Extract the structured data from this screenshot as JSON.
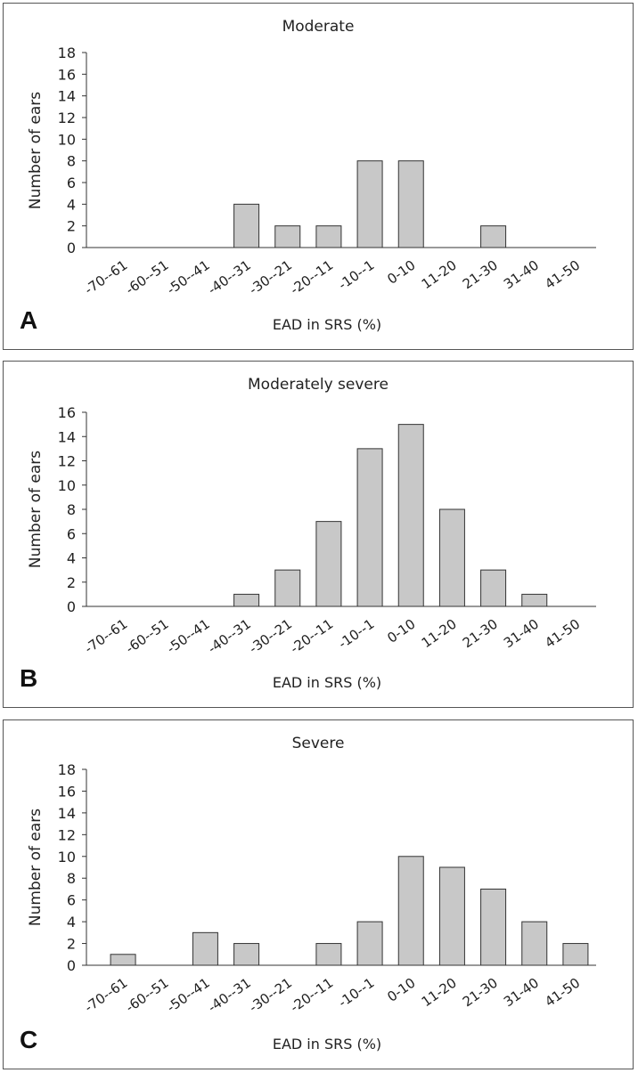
{
  "chart_data": [
    {
      "type": "bar",
      "panel_letter": "A",
      "title": "Moderate",
      "xlabel": "EAD in SRS (%)",
      "ylabel": "Number of ears",
      "ylim": [
        0,
        18
      ],
      "yticks": [
        0,
        2,
        4,
        6,
        8,
        10,
        12,
        14,
        16,
        18
      ],
      "categories": [
        "-70--61",
        "-60--51",
        "-50--41",
        "-40--31",
        "-30--21",
        "-20--11",
        "-10--1",
        "0-10",
        "11-20",
        "21-30",
        "31-40",
        "41-50"
      ],
      "values": [
        0,
        0,
        0,
        4,
        2,
        2,
        8,
        8,
        0,
        2,
        0,
        0
      ],
      "bar_color": "#c8c8c8"
    },
    {
      "type": "bar",
      "panel_letter": "B",
      "title": "Moderately severe",
      "xlabel": "EAD in SRS (%)",
      "ylabel": "Number of ears",
      "ylim": [
        0,
        16
      ],
      "yticks": [
        0,
        2,
        4,
        6,
        8,
        10,
        12,
        14,
        16
      ],
      "categories": [
        "-70--61",
        "-60--51",
        "-50--41",
        "-40--31",
        "-30--21",
        "-20--11",
        "-10--1",
        "0-10",
        "11-20",
        "21-30",
        "31-40",
        "41-50"
      ],
      "values": [
        0,
        0,
        0,
        1,
        3,
        7,
        13,
        15,
        8,
        3,
        1,
        0
      ],
      "bar_color": "#c8c8c8"
    },
    {
      "type": "bar",
      "panel_letter": "C",
      "title": "Severe",
      "xlabel": "EAD in SRS (%)",
      "ylabel": "Number of ears",
      "ylim": [
        0,
        18
      ],
      "yticks": [
        0,
        2,
        4,
        6,
        8,
        10,
        12,
        14,
        16,
        18
      ],
      "categories": [
        "-70--61",
        "-60--51",
        "-50--41",
        "-40--31",
        "-30--21",
        "-20--11",
        "-10--1",
        "0-10",
        "11-20",
        "21-30",
        "31-40",
        "41-50"
      ],
      "values": [
        1,
        0,
        3,
        2,
        0,
        2,
        4,
        10,
        9,
        7,
        4,
        2
      ],
      "bar_color": "#c8c8c8"
    }
  ]
}
